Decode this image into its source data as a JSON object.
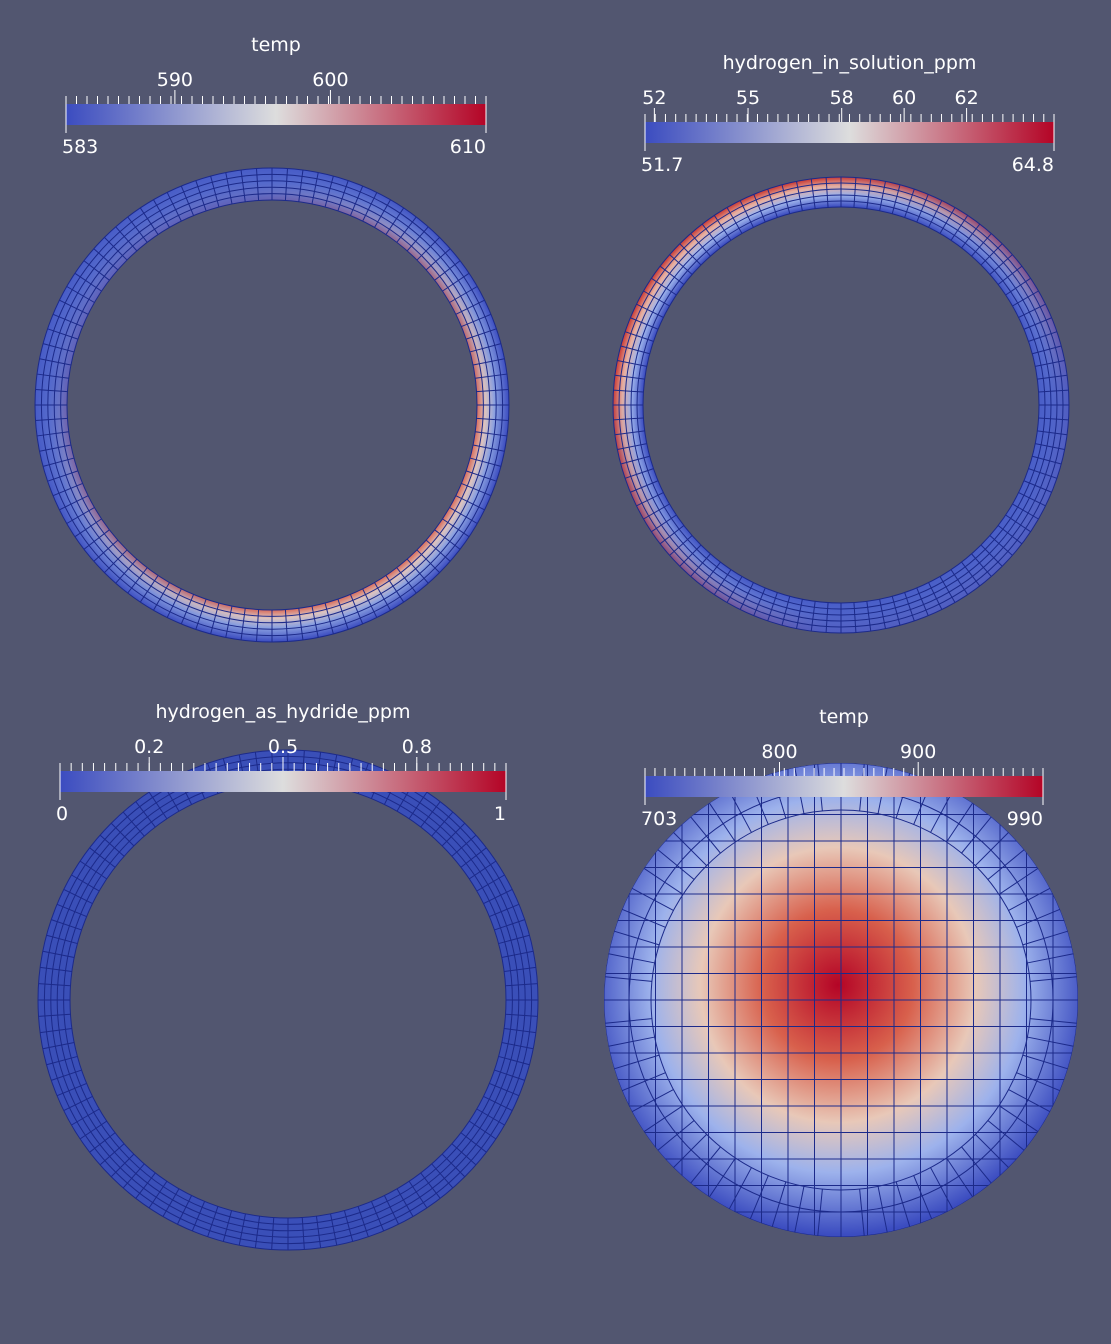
{
  "panels": [
    {
      "title": "temp",
      "range": [
        583,
        610
      ],
      "ticks": [
        590,
        600
      ]
    },
    {
      "title": "hydrogen_in_solution_ppm",
      "range": [
        51.7,
        64.8
      ],
      "ticks": [
        52,
        55,
        58,
        60,
        62
      ]
    },
    {
      "title": "hydrogen_as_hydride_ppm",
      "range": [
        0,
        1
      ],
      "ticks": [
        0.2,
        0.5,
        0.8
      ]
    },
    {
      "title": "temp",
      "range": [
        703,
        990
      ],
      "ticks": [
        800,
        900
      ]
    }
  ]
}
